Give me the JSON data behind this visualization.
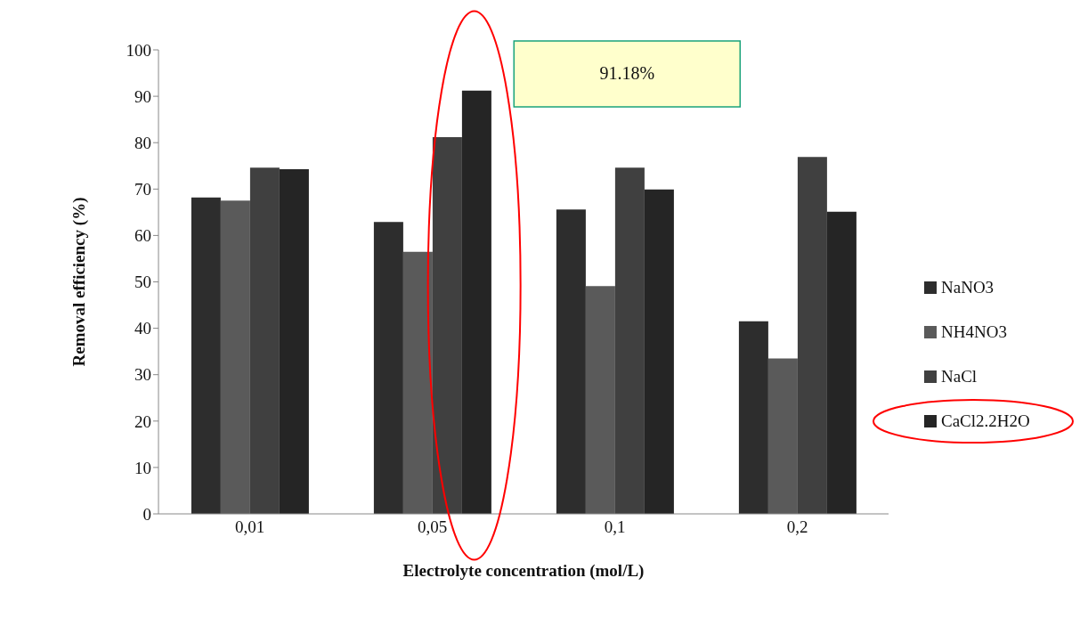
{
  "chart_data": {
    "type": "bar",
    "xlabel": "Electrolyte concentration (mol/L)",
    "ylabel": "Removal efficiency (%)",
    "categories": [
      "0,01",
      "0,05",
      "0,1",
      "0,2"
    ],
    "series": [
      {
        "name": "NaNO3",
        "color": "#2d2d2d",
        "values": [
          68.2,
          62.9,
          65.6,
          41.5
        ]
      },
      {
        "name": "NH4NO3",
        "color": "#5a5a5a",
        "values": [
          67.5,
          56.5,
          49.1,
          33.5
        ]
      },
      {
        "name": "NaCl",
        "color": "#404040",
        "values": [
          74.6,
          81.2,
          74.6,
          76.9
        ]
      },
      {
        "name": "CaCl2.2H2O",
        "color": "#252525",
        "values": [
          74.3,
          91.2,
          69.9,
          65.1
        ]
      }
    ],
    "ylim": [
      0,
      100
    ],
    "yticks": [
      0,
      10,
      20,
      30,
      40,
      50,
      60,
      70,
      80,
      90,
      100
    ],
    "grid": false,
    "legend": "right",
    "annotations": [
      "91.18%"
    ]
  }
}
